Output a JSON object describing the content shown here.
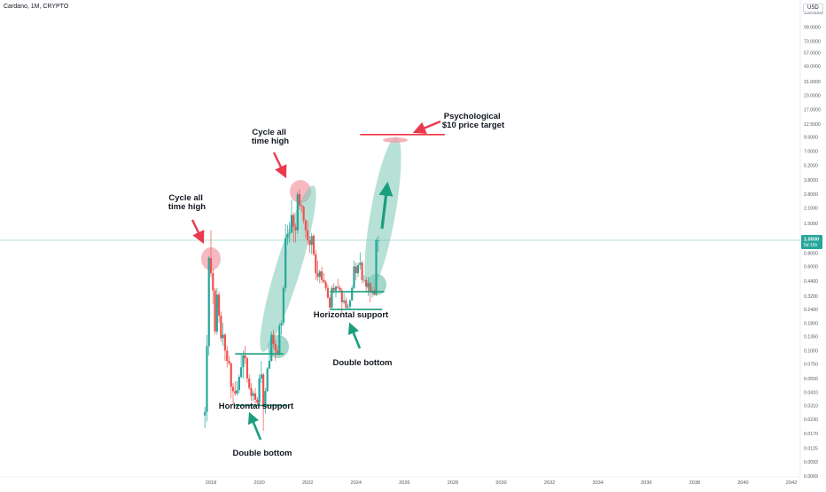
{
  "header": {
    "symbol_line": "Cardano, 1M, CRYPTO"
  },
  "currency": "USD",
  "price_tag": {
    "price": "1.0500",
    "countdown": "5d 15h"
  },
  "colors": {
    "up": "#26a69a",
    "down": "#ef5350",
    "support": "#1b9e7e",
    "highlight_green": "#7cc8b4",
    "highlight_red": "#f3a1ab",
    "arrow_red": "#e9394f",
    "target_line": "#f23645",
    "price_line": "#9ed7cc",
    "text": "#131722",
    "axis_text": "#555a66"
  },
  "annotations": {
    "ath1": "Cycle all time high",
    "ath2": "Cycle all time high",
    "support1": "Horizontal support",
    "support2": "Horizontal support",
    "bottom1": "Double bottom",
    "bottom2": "Double bottom",
    "target": "Psychological $10 price target"
  },
  "chart_data": {
    "type": "candlestick",
    "scale": "log",
    "x_ticks": [
      "2018",
      "2020",
      "2022",
      "2024",
      "2026",
      "2028",
      "2030",
      "2032",
      "2034",
      "2036",
      "2038",
      "2040",
      "2042"
    ],
    "y_ticks": [
      "185.0000",
      "135.0000",
      "99.0000",
      "73.0000",
      "57.0000",
      "43.0000",
      "31.0000",
      "23.0000",
      "17.0000",
      "12.5000",
      "9.5000",
      "7.0000",
      "5.2000",
      "3.8000",
      "2.8000",
      "2.1000",
      "1.5000",
      "1.0500",
      "0.8000",
      "0.6000",
      "0.4400",
      "0.3200",
      "0.2400",
      "0.1800",
      "0.1350",
      "0.1000",
      "0.0750",
      "0.0550",
      "0.0410",
      "0.0310",
      "0.0230",
      "0.0170",
      "0.0125",
      "0.0093",
      "0.0069",
      "0.0051"
    ],
    "support_levels": [
      {
        "from": "2019-01",
        "to": "2021-03",
        "price": 0.031
      },
      {
        "from": "2019-01",
        "to": "2021-01",
        "price": 0.093
      },
      {
        "from": "2022-12",
        "to": "2025-02",
        "price": 0.24
      },
      {
        "from": "2022-12",
        "to": "2025-03",
        "price": 0.35
      }
    ],
    "target_level": {
      "from": "2024-03",
      "to": "2027-09",
      "price": 10.0
    },
    "series": [
      {
        "d": "2017-10",
        "o": 0.025,
        "h": 0.03,
        "l": 0.019,
        "c": 0.027
      },
      {
        "d": "2017-11",
        "o": 0.027,
        "h": 0.14,
        "l": 0.022,
        "c": 0.11
      },
      {
        "d": "2017-12",
        "o": 0.11,
        "h": 0.75,
        "l": 0.09,
        "c": 0.72
      },
      {
        "d": "2018-01",
        "o": 0.72,
        "h": 1.3,
        "l": 0.48,
        "c": 0.52
      },
      {
        "d": "2018-02",
        "o": 0.52,
        "h": 0.57,
        "l": 0.27,
        "c": 0.36
      },
      {
        "d": "2018-03",
        "o": 0.36,
        "h": 0.38,
        "l": 0.14,
        "c": 0.15
      },
      {
        "d": "2018-04",
        "o": 0.15,
        "h": 0.38,
        "l": 0.14,
        "c": 0.33
      },
      {
        "d": "2018-05",
        "o": 0.33,
        "h": 0.35,
        "l": 0.18,
        "c": 0.21
      },
      {
        "d": "2018-06",
        "o": 0.21,
        "h": 0.23,
        "l": 0.12,
        "c": 0.13
      },
      {
        "d": "2018-07",
        "o": 0.13,
        "h": 0.18,
        "l": 0.11,
        "c": 0.14
      },
      {
        "d": "2018-08",
        "o": 0.14,
        "h": 0.145,
        "l": 0.08,
        "c": 0.1
      },
      {
        "d": "2018-09",
        "o": 0.1,
        "h": 0.11,
        "l": 0.07,
        "c": 0.08
      },
      {
        "d": "2018-10",
        "o": 0.08,
        "h": 0.09,
        "l": 0.073,
        "c": 0.076
      },
      {
        "d": "2018-11",
        "o": 0.076,
        "h": 0.078,
        "l": 0.036,
        "c": 0.046
      },
      {
        "d": "2018-12",
        "o": 0.046,
        "h": 0.05,
        "l": 0.031,
        "c": 0.042
      },
      {
        "d": "2019-01",
        "o": 0.042,
        "h": 0.052,
        "l": 0.038,
        "c": 0.04
      },
      {
        "d": "2019-02",
        "o": 0.04,
        "h": 0.052,
        "l": 0.038,
        "c": 0.043
      },
      {
        "d": "2019-03",
        "o": 0.043,
        "h": 0.06,
        "l": 0.04,
        "c": 0.057
      },
      {
        "d": "2019-04",
        "o": 0.057,
        "h": 0.092,
        "l": 0.055,
        "c": 0.07
      },
      {
        "d": "2019-05",
        "o": 0.07,
        "h": 0.1,
        "l": 0.055,
        "c": 0.09
      },
      {
        "d": "2019-06",
        "o": 0.09,
        "h": 0.11,
        "l": 0.075,
        "c": 0.085
      },
      {
        "d": "2019-07",
        "o": 0.085,
        "h": 0.087,
        "l": 0.05,
        "c": 0.055
      },
      {
        "d": "2019-08",
        "o": 0.055,
        "h": 0.06,
        "l": 0.043,
        "c": 0.045
      },
      {
        "d": "2019-09",
        "o": 0.045,
        "h": 0.05,
        "l": 0.034,
        "c": 0.038
      },
      {
        "d": "2019-10",
        "o": 0.038,
        "h": 0.042,
        "l": 0.034,
        "c": 0.04
      },
      {
        "d": "2019-11",
        "o": 0.04,
        "h": 0.045,
        "l": 0.032,
        "c": 0.035
      },
      {
        "d": "2019-12",
        "o": 0.035,
        "h": 0.037,
        "l": 0.031,
        "c": 0.033
      },
      {
        "d": "2020-01",
        "o": 0.033,
        "h": 0.06,
        "l": 0.032,
        "c": 0.055
      },
      {
        "d": "2020-02",
        "o": 0.055,
        "h": 0.08,
        "l": 0.05,
        "c": 0.06
      },
      {
        "d": "2020-03",
        "o": 0.06,
        "h": 0.062,
        "l": 0.018,
        "c": 0.03
      },
      {
        "d": "2020-04",
        "o": 0.03,
        "h": 0.045,
        "l": 0.026,
        "c": 0.042
      },
      {
        "d": "2020-05",
        "o": 0.042,
        "h": 0.07,
        "l": 0.041,
        "c": 0.068
      },
      {
        "d": "2020-06",
        "o": 0.068,
        "h": 0.1,
        "l": 0.067,
        "c": 0.08
      },
      {
        "d": "2020-07",
        "o": 0.08,
        "h": 0.15,
        "l": 0.079,
        "c": 0.14
      },
      {
        "d": "2020-08",
        "o": 0.14,
        "h": 0.155,
        "l": 0.105,
        "c": 0.115
      },
      {
        "d": "2020-09",
        "o": 0.115,
        "h": 0.125,
        "l": 0.08,
        "c": 0.1
      },
      {
        "d": "2020-10",
        "o": 0.1,
        "h": 0.11,
        "l": 0.09,
        "c": 0.095
      },
      {
        "d": "2020-11",
        "o": 0.095,
        "h": 0.18,
        "l": 0.09,
        "c": 0.17
      },
      {
        "d": "2020-12",
        "o": 0.17,
        "h": 0.19,
        "l": 0.14,
        "c": 0.18
      },
      {
        "d": "2021-01",
        "o": 0.18,
        "h": 0.4,
        "l": 0.17,
        "c": 0.38
      },
      {
        "d": "2021-02",
        "o": 0.38,
        "h": 1.48,
        "l": 0.35,
        "c": 1.1
      },
      {
        "d": "2021-03",
        "o": 1.1,
        "h": 1.45,
        "l": 0.95,
        "c": 1.2
      },
      {
        "d": "2021-04",
        "o": 1.2,
        "h": 1.55,
        "l": 1.0,
        "c": 1.23
      },
      {
        "d": "2021-05",
        "o": 1.23,
        "h": 2.5,
        "l": 1.22,
        "c": 1.8
      },
      {
        "d": "2021-06",
        "o": 1.8,
        "h": 1.9,
        "l": 1.0,
        "c": 1.4
      },
      {
        "d": "2021-07",
        "o": 1.4,
        "h": 1.5,
        "l": 1.0,
        "c": 1.3
      },
      {
        "d": "2021-08",
        "o": 1.3,
        "h": 2.96,
        "l": 1.2,
        "c": 2.8
      },
      {
        "d": "2021-09",
        "o": 2.8,
        "h": 3.1,
        "l": 2.0,
        "c": 2.2
      },
      {
        "d": "2021-10",
        "o": 2.2,
        "h": 2.3,
        "l": 1.9,
        "c": 2.15
      },
      {
        "d": "2021-11",
        "o": 2.15,
        "h": 2.2,
        "l": 1.5,
        "c": 1.6
      },
      {
        "d": "2021-12",
        "o": 1.6,
        "h": 1.65,
        "l": 1.1,
        "c": 1.3
      },
      {
        "d": "2022-01",
        "o": 1.3,
        "h": 1.6,
        "l": 0.95,
        "c": 1.05
      },
      {
        "d": "2022-02",
        "o": 1.05,
        "h": 1.15,
        "l": 0.8,
        "c": 0.95
      },
      {
        "d": "2022-03",
        "o": 0.95,
        "h": 1.23,
        "l": 0.78,
        "c": 1.15
      },
      {
        "d": "2022-04",
        "o": 1.15,
        "h": 1.2,
        "l": 0.75,
        "c": 0.78
      },
      {
        "d": "2022-05",
        "o": 0.78,
        "h": 0.85,
        "l": 0.45,
        "c": 0.52
      },
      {
        "d": "2022-06",
        "o": 0.52,
        "h": 0.68,
        "l": 0.44,
        "c": 0.48
      },
      {
        "d": "2022-07",
        "o": 0.48,
        "h": 0.56,
        "l": 0.42,
        "c": 0.54
      },
      {
        "d": "2022-08",
        "o": 0.54,
        "h": 0.6,
        "l": 0.42,
        "c": 0.45
      },
      {
        "d": "2022-09",
        "o": 0.45,
        "h": 0.52,
        "l": 0.42,
        "c": 0.43
      },
      {
        "d": "2022-10",
        "o": 0.43,
        "h": 0.45,
        "l": 0.36,
        "c": 0.38
      },
      {
        "d": "2022-11",
        "o": 0.38,
        "h": 0.41,
        "l": 0.3,
        "c": 0.31
      },
      {
        "d": "2022-12",
        "o": 0.31,
        "h": 0.33,
        "l": 0.24,
        "c": 0.25
      },
      {
        "d": "2023-01",
        "o": 0.25,
        "h": 0.4,
        "l": 0.245,
        "c": 0.38
      },
      {
        "d": "2023-02",
        "o": 0.38,
        "h": 0.42,
        "l": 0.34,
        "c": 0.36
      },
      {
        "d": "2023-03",
        "o": 0.36,
        "h": 0.4,
        "l": 0.31,
        "c": 0.39
      },
      {
        "d": "2023-04",
        "o": 0.39,
        "h": 0.46,
        "l": 0.37,
        "c": 0.38
      },
      {
        "d": "2023-05",
        "o": 0.38,
        "h": 0.4,
        "l": 0.35,
        "c": 0.36
      },
      {
        "d": "2023-06",
        "o": 0.36,
        "h": 0.38,
        "l": 0.22,
        "c": 0.28
      },
      {
        "d": "2023-07",
        "o": 0.28,
        "h": 0.34,
        "l": 0.27,
        "c": 0.29
      },
      {
        "d": "2023-08",
        "o": 0.29,
        "h": 0.31,
        "l": 0.24,
        "c": 0.25
      },
      {
        "d": "2023-09",
        "o": 0.25,
        "h": 0.27,
        "l": 0.24,
        "c": 0.255
      },
      {
        "d": "2023-10",
        "o": 0.255,
        "h": 0.3,
        "l": 0.24,
        "c": 0.29
      },
      {
        "d": "2023-11",
        "o": 0.29,
        "h": 0.4,
        "l": 0.29,
        "c": 0.38
      },
      {
        "d": "2023-12",
        "o": 0.38,
        "h": 0.68,
        "l": 0.37,
        "c": 0.6
      },
      {
        "d": "2024-01",
        "o": 0.6,
        "h": 0.65,
        "l": 0.45,
        "c": 0.52
      },
      {
        "d": "2024-02",
        "o": 0.52,
        "h": 0.65,
        "l": 0.48,
        "c": 0.62
      },
      {
        "d": "2024-03",
        "o": 0.62,
        "h": 0.81,
        "l": 0.56,
        "c": 0.65
      },
      {
        "d": "2024-04",
        "o": 0.65,
        "h": 0.68,
        "l": 0.42,
        "c": 0.45
      },
      {
        "d": "2024-05",
        "o": 0.45,
        "h": 0.5,
        "l": 0.42,
        "c": 0.45
      },
      {
        "d": "2024-06",
        "o": 0.45,
        "h": 0.48,
        "l": 0.35,
        "c": 0.39
      },
      {
        "d": "2024-07",
        "o": 0.39,
        "h": 0.48,
        "l": 0.32,
        "c": 0.42
      },
      {
        "d": "2024-08",
        "o": 0.42,
        "h": 0.43,
        "l": 0.28,
        "c": 0.35
      },
      {
        "d": "2024-09",
        "o": 0.35,
        "h": 0.39,
        "l": 0.31,
        "c": 0.36
      },
      {
        "d": "2024-10",
        "o": 0.36,
        "h": 0.39,
        "l": 0.32,
        "c": 0.33
      },
      {
        "d": "2024-11",
        "o": 0.33,
        "h": 1.1,
        "l": 0.32,
        "c": 1.05
      },
      {
        "d": "2024-12",
        "o": 1.05,
        "h": 1.15,
        "l": 0.82,
        "c": 1.05
      }
    ]
  }
}
